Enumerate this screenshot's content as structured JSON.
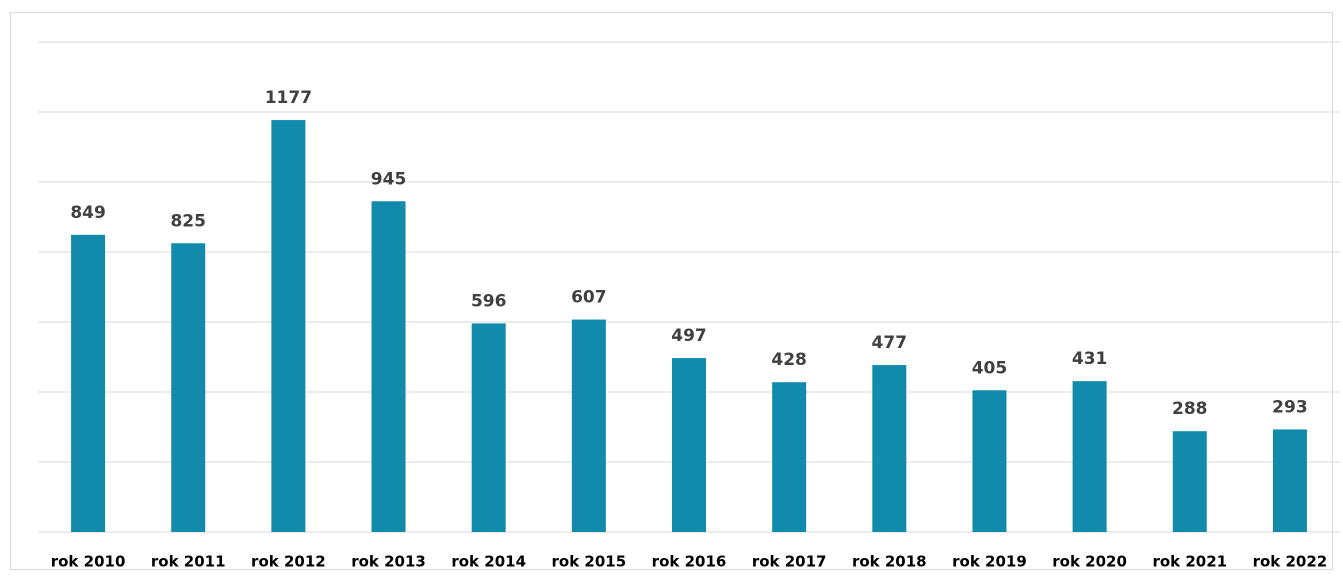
{
  "chart_data": {
    "type": "bar",
    "categories": [
      "rok 2010",
      "rok 2011",
      "rok 2012",
      "rok 2013",
      "rok 2014",
      "rok 2015",
      "rok 2016",
      "rok 2017",
      "rok 2018",
      "rok 2019",
      "rok 2020",
      "rok 2021",
      "rok 2022"
    ],
    "values": [
      849,
      825,
      1177,
      945,
      596,
      607,
      497,
      428,
      477,
      405,
      431,
      288,
      293
    ],
    "color": "#118aab",
    "ylim": [
      0,
      1400
    ],
    "yticks": [
      0,
      200,
      400,
      600,
      800,
      1000,
      1200,
      1400
    ],
    "grid": true
  }
}
